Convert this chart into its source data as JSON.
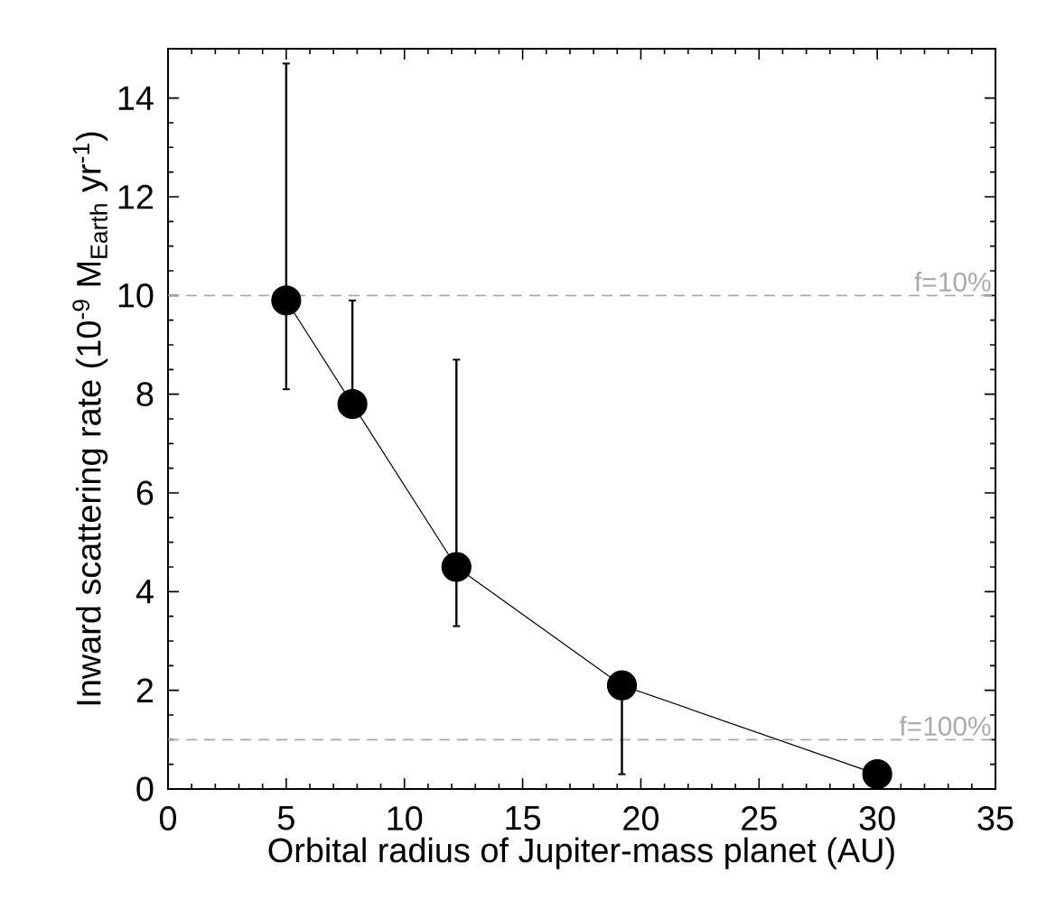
{
  "chart_data": {
    "type": "line",
    "xlabel": "Orbital radius of Jupiter-mass planet (AU)",
    "ylabel": "Inward scattering rate (10$^{-9}$ M$_{Earth}$ yr$^{-1}$)",
    "x": [
      5.0,
      7.8,
      12.2,
      19.2,
      30.0
    ],
    "series": [
      {
        "color": "#000000",
        "values": [
          9.9,
          7.8,
          4.5,
          2.1,
          0.3
        ],
        "errors": [
          [
            8.1,
            14.7
          ],
          [
            7.8,
            9.9
          ],
          [
            3.3,
            8.7
          ],
          [
            0.3,
            2.1
          ],
          null
        ]
      }
    ],
    "xlim": [
      0,
      35
    ],
    "xticks": [
      0,
      5,
      10,
      15,
      20,
      25,
      30,
      35
    ],
    "ylim": [
      0,
      15
    ],
    "yticks": [
      0,
      2,
      4,
      6,
      8,
      10,
      12,
      14
    ],
    "ref_lines": [
      {
        "axis": "y",
        "value": 10,
        "label": "f=10%",
        "color": "#aaaaaa",
        "line_style": "dashed"
      },
      {
        "axis": "y",
        "value": 1,
        "label": "f=100%",
        "color": "#aaaaaa",
        "line_style": "dashed"
      }
    ],
    "marker": "circle",
    "line_style": "solid"
  }
}
